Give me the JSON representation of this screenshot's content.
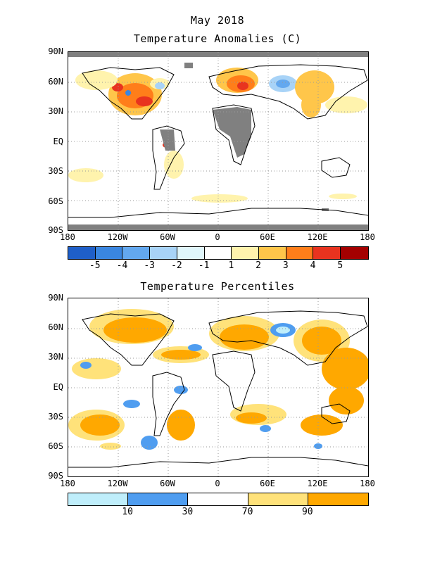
{
  "title_line1": "May 2018",
  "title_line2": "Temperature Anomalies (C)",
  "title_percentiles": "Temperature Percentiles",
  "lat_labels": [
    "90N",
    "60N",
    "30N",
    "EQ",
    "30S",
    "60S",
    "90S"
  ],
  "lon_labels": [
    "180",
    "120W",
    "60W",
    "0",
    "60E",
    "120E",
    "180"
  ],
  "anomaly_scale": {
    "colors": [
      "#1f5fc8",
      "#3a86e0",
      "#63a8ef",
      "#a8d3f7",
      "#e0f6fb",
      "#ffffff",
      "#fff3ad",
      "#ffc64a",
      "#ff7e1a",
      "#e8331f",
      "#a40000"
    ],
    "labels": [
      "-5",
      "-4",
      "-3",
      "-2",
      "-1",
      "1",
      "2",
      "3",
      "4",
      "5"
    ]
  },
  "percentile_scale": {
    "colors": [
      "#bfeefb",
      "#4f9df0",
      "#ffffff",
      "#ffe27a",
      "#ffa800"
    ],
    "labels": [
      "10",
      "30",
      "70",
      "90"
    ]
  },
  "missing_color": "#808080"
}
